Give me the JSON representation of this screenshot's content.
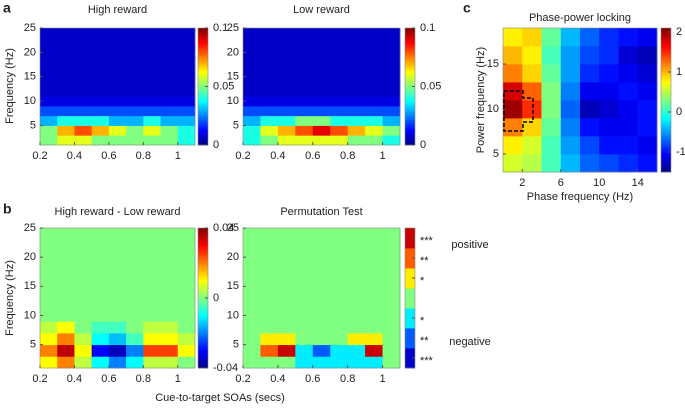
{
  "chart_data": [
    {
      "type": "heatmap",
      "panel": "a",
      "title": "High reward",
      "ylabel": "Frequency (Hz)",
      "x": [
        0.25,
        0.35,
        0.45,
        0.55,
        0.65,
        0.75,
        0.85,
        0.95,
        1.05
      ],
      "y": [
        2,
        4,
        6,
        8,
        10,
        12,
        14,
        16,
        18,
        20,
        22,
        24
      ],
      "z": [
        [
          0.05,
          0.06,
          0.06,
          0.05,
          0.05,
          0.05,
          0.05,
          0.05,
          0.04
        ],
        [
          0.05,
          0.07,
          0.08,
          0.07,
          0.06,
          0.05,
          0.06,
          0.05,
          0.04
        ],
        [
          0.03,
          0.04,
          0.04,
          0.04,
          0.03,
          0.03,
          0.04,
          0.03,
          0.03
        ],
        [
          0.02,
          0.02,
          0.02,
          0.02,
          0.02,
          0.02,
          0.02,
          0.02,
          0.02
        ],
        [
          0.01,
          0.01,
          0.01,
          0.01,
          0.01,
          0.01,
          0.01,
          0.01,
          0.01
        ],
        [
          0.007,
          0.007,
          0.007,
          0.007,
          0.007,
          0.007,
          0.007,
          0.007,
          0.007
        ],
        [
          0.007,
          0.007,
          0.007,
          0.007,
          0.007,
          0.007,
          0.007,
          0.007,
          0.007
        ],
        [
          0.007,
          0.007,
          0.007,
          0.007,
          0.007,
          0.007,
          0.007,
          0.007,
          0.007
        ],
        [
          0.007,
          0.007,
          0.007,
          0.007,
          0.007,
          0.007,
          0.007,
          0.007,
          0.007
        ],
        [
          0.007,
          0.007,
          0.007,
          0.007,
          0.007,
          0.007,
          0.007,
          0.007,
          0.007
        ],
        [
          0.007,
          0.007,
          0.007,
          0.007,
          0.007,
          0.007,
          0.007,
          0.007,
          0.007
        ],
        [
          0.007,
          0.007,
          0.007,
          0.007,
          0.007,
          0.007,
          0.007,
          0.007,
          0.007
        ]
      ],
      "xlim": [
        0.2,
        1.1
      ],
      "ylim": [
        1,
        25
      ],
      "xticks": [
        0.2,
        0.4,
        0.6,
        0.8,
        1
      ],
      "yticks": [
        5,
        10,
        15,
        20,
        25
      ],
      "colormap": "jet",
      "clim": [
        0,
        0.1
      ],
      "cticks": [
        0,
        0.05,
        0.1
      ]
    },
    {
      "type": "heatmap",
      "title": "Low reward",
      "x": [
        0.25,
        0.35,
        0.45,
        0.55,
        0.65,
        0.75,
        0.85,
        0.95,
        1.05
      ],
      "y": [
        2,
        4,
        6,
        8,
        10,
        12,
        14,
        16,
        18,
        20,
        22,
        24
      ],
      "z": [
        [
          0.04,
          0.05,
          0.06,
          0.06,
          0.06,
          0.06,
          0.05,
          0.05,
          0.04
        ],
        [
          0.04,
          0.06,
          0.07,
          0.08,
          0.09,
          0.08,
          0.07,
          0.06,
          0.05
        ],
        [
          0.03,
          0.04,
          0.04,
          0.05,
          0.05,
          0.04,
          0.04,
          0.04,
          0.03
        ],
        [
          0.02,
          0.02,
          0.02,
          0.02,
          0.02,
          0.02,
          0.02,
          0.02,
          0.02
        ],
        [
          0.01,
          0.01,
          0.01,
          0.01,
          0.01,
          0.01,
          0.01,
          0.01,
          0.01
        ],
        [
          0.007,
          0.007,
          0.007,
          0.007,
          0.007,
          0.007,
          0.007,
          0.007,
          0.007
        ],
        [
          0.007,
          0.007,
          0.007,
          0.007,
          0.007,
          0.007,
          0.007,
          0.007,
          0.007
        ],
        [
          0.007,
          0.007,
          0.007,
          0.007,
          0.007,
          0.007,
          0.007,
          0.007,
          0.007
        ],
        [
          0.007,
          0.007,
          0.007,
          0.007,
          0.007,
          0.007,
          0.007,
          0.007,
          0.007
        ],
        [
          0.007,
          0.007,
          0.007,
          0.007,
          0.007,
          0.007,
          0.007,
          0.007,
          0.007
        ],
        [
          0.007,
          0.007,
          0.007,
          0.007,
          0.007,
          0.007,
          0.007,
          0.007,
          0.007
        ],
        [
          0.007,
          0.007,
          0.007,
          0.007,
          0.007,
          0.007,
          0.007,
          0.007,
          0.007
        ]
      ],
      "xlim": [
        0.2,
        1.1
      ],
      "ylim": [
        1,
        25
      ],
      "xticks": [
        0.2,
        0.4,
        0.6,
        0.8,
        1
      ],
      "yticks": [
        5,
        10,
        15,
        20,
        25
      ],
      "colormap": "jet",
      "clim": [
        0,
        0.1
      ],
      "cticks": [
        0,
        0.05,
        0.1
      ]
    },
    {
      "type": "heatmap",
      "panel": "b",
      "title": "High reward - Low reward",
      "ylabel": "Frequency (Hz)",
      "xlabel": "Cue-to-target SOAs (secs)",
      "x": [
        0.25,
        0.35,
        0.45,
        0.55,
        0.65,
        0.75,
        0.85,
        0.95,
        1.05
      ],
      "y": [
        2,
        4,
        6,
        8,
        10,
        12,
        14,
        16,
        18,
        20,
        22,
        24
      ],
      "z": [
        [
          0.01,
          0.02,
          0.005,
          -0.01,
          -0.02,
          -0.01,
          0.005,
          0.005,
          0
        ],
        [
          0.02,
          0.035,
          0.01,
          -0.03,
          -0.035,
          -0.02,
          0.025,
          0.025,
          0.01
        ],
        [
          0.01,
          0.02,
          0.005,
          -0.01,
          -0.015,
          -0.005,
          0.01,
          0.01,
          0.005
        ],
        [
          0.005,
          0.01,
          0,
          -0.005,
          -0.005,
          0,
          0.005,
          0.005,
          0
        ],
        [
          0,
          0,
          0,
          0,
          0,
          0,
          0,
          0,
          0
        ],
        [
          0,
          0,
          0,
          0,
          0,
          0,
          0,
          0,
          0
        ],
        [
          0,
          0,
          0,
          0,
          0,
          0,
          0,
          0,
          0
        ],
        [
          0,
          0,
          0,
          0,
          0,
          0,
          0,
          0,
          0
        ],
        [
          0,
          0,
          0,
          0,
          0,
          0,
          0,
          0,
          0
        ],
        [
          0,
          0,
          0,
          0,
          0,
          0,
          0,
          0,
          0
        ],
        [
          0,
          0,
          0,
          0,
          0,
          0,
          0,
          0,
          0
        ],
        [
          0,
          0,
          0,
          0,
          0,
          0,
          0,
          0,
          0
        ]
      ],
      "xlim": [
        0.2,
        1.1
      ],
      "ylim": [
        1,
        25
      ],
      "xticks": [
        0.2,
        0.4,
        0.6,
        0.8,
        1
      ],
      "yticks": [
        5,
        10,
        15,
        20,
        25
      ],
      "colormap": "jet",
      "clim": [
        -0.04,
        0.04
      ],
      "cticks": [
        -0.04,
        0,
        0.04
      ]
    },
    {
      "type": "heatmap",
      "title": "Permutation Test",
      "annotations": [
        "positive",
        "negative"
      ],
      "x": [
        0.25,
        0.35,
        0.45,
        0.55,
        0.65,
        0.75,
        0.85,
        0.95,
        1.05
      ],
      "y": [
        2,
        4,
        6,
        8,
        10,
        12,
        14,
        16,
        18,
        20,
        22,
        24
      ],
      "z": [
        [
          0,
          0,
          0,
          -1,
          -1,
          -1,
          -1,
          -1,
          0
        ],
        [
          0,
          2,
          3,
          -1,
          -2,
          -1,
          -1,
          3,
          0
        ],
        [
          0,
          1,
          1,
          0,
          0,
          0,
          1,
          1,
          0
        ],
        [
          0,
          0,
          0,
          0,
          0,
          0,
          0,
          0,
          0
        ],
        [
          0,
          0,
          0,
          0,
          0,
          0,
          0,
          0,
          0
        ],
        [
          0,
          0,
          0,
          0,
          0,
          0,
          0,
          0,
          0
        ],
        [
          0,
          0,
          0,
          0,
          0,
          0,
          0,
          0,
          0
        ],
        [
          0,
          0,
          0,
          0,
          0,
          0,
          0,
          0,
          0
        ],
        [
          0,
          0,
          0,
          0,
          0,
          0,
          0,
          0,
          0
        ],
        [
          0,
          0,
          0,
          0,
          0,
          0,
          0,
          0,
          0
        ],
        [
          0,
          0,
          0,
          0,
          0,
          0,
          0,
          0,
          0
        ],
        [
          0,
          0,
          0,
          0,
          0,
          0,
          0,
          0,
          0
        ]
      ],
      "xlim": [
        0.2,
        1.1
      ],
      "ylim": [
        1,
        25
      ],
      "xticks": [
        0.2,
        0.4,
        0.6,
        0.8,
        1
      ],
      "yticks": [
        5,
        10,
        15,
        20,
        25
      ],
      "colormap": "jet",
      "discrete": true,
      "clim": [
        -3.5,
        3.5
      ],
      "cticks": [
        {
          "value": 3,
          "label": "***"
        },
        {
          "value": 2,
          "label": "**"
        },
        {
          "value": 1,
          "label": "*"
        },
        {
          "value": -1,
          "label": "*"
        },
        {
          "value": -2,
          "label": "**"
        },
        {
          "value": -3,
          "label": "***"
        }
      ]
    },
    {
      "type": "heatmap",
      "panel": "c",
      "title": "Phase-power locking",
      "xlabel": "Phase frequency (Hz)",
      "ylabel": "Power frequency (Hz)",
      "x": [
        1,
        3,
        5,
        7,
        9,
        11,
        13,
        15
      ],
      "y": [
        4,
        6,
        8,
        10,
        12,
        14,
        16,
        18
      ],
      "z": [
        [
          0.6,
          0.5,
          0.1,
          -0.4,
          -0.7,
          -0.8,
          -0.9,
          -1.0
        ],
        [
          0.8,
          0.6,
          0.1,
          -0.5,
          -0.8,
          -1.0,
          -1.0,
          -1.1
        ],
        [
          1.2,
          0.9,
          0.2,
          -0.6,
          -1.0,
          -1.1,
          -1.1,
          -1.0
        ],
        [
          2.0,
          1.5,
          0.3,
          -0.7,
          -1.3,
          -1.2,
          -1.1,
          -1.0
        ],
        [
          1.8,
          1.3,
          0.3,
          -0.6,
          -1.1,
          -1.1,
          -1.0,
          -1.1
        ],
        [
          1.2,
          0.9,
          0.2,
          -0.5,
          -0.9,
          -1.0,
          -1.1,
          -1.2
        ],
        [
          1.0,
          0.8,
          0.1,
          -0.5,
          -0.8,
          -0.9,
          -1.2,
          -1.3
        ],
        [
          0.8,
          0.9,
          0.2,
          -0.4,
          -0.7,
          -0.9,
          -1.0,
          -1.1
        ]
      ],
      "xlim": [
        0,
        16
      ],
      "ylim": [
        3,
        19
      ],
      "xticks": [
        2,
        6,
        10,
        14
      ],
      "yticks": [
        5,
        10,
        15
      ],
      "colormap": "jet",
      "clim": [
        -1.5,
        2.1
      ],
      "cticks": [
        -1,
        0,
        1,
        2
      ]
    }
  ]
}
